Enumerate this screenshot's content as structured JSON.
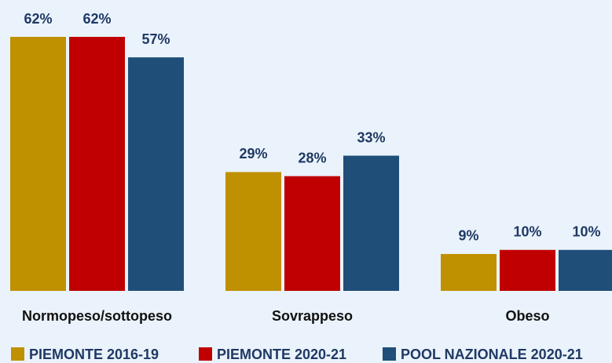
{
  "chart_data": {
    "type": "bar",
    "categories": [
      "Normopeso/sottopeso",
      "Sovrappeso",
      "Obeso"
    ],
    "series": [
      {
        "name": "PIEMONTE 2016-19",
        "color": "#bf9000",
        "values": [
          62,
          29,
          9
        ],
        "value_labels": [
          "62%",
          "29%",
          "9%"
        ]
      },
      {
        "name": "PIEMONTE 2020-21",
        "color": "#c00000",
        "values": [
          62,
          28,
          10
        ],
        "value_labels": [
          "62%",
          "28%",
          "10%"
        ]
      },
      {
        "name": "POOL NAZIONALE 2020-21",
        "color": "#1f4e79",
        "values": [
          57,
          33,
          10
        ],
        "value_labels": [
          "57%",
          "33%",
          "10%"
        ]
      }
    ],
    "legend": "bottom"
  }
}
